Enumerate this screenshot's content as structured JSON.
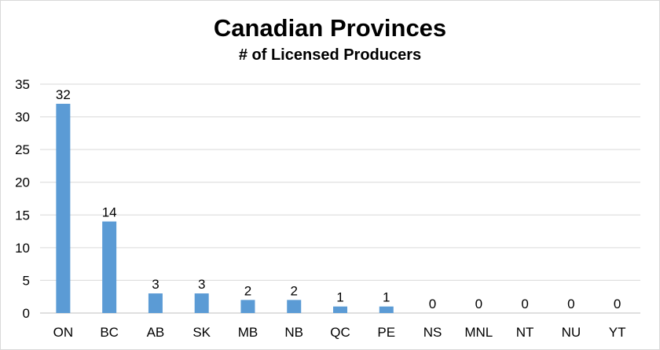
{
  "chart_data": {
    "type": "bar",
    "title": "Canadian Provinces",
    "subtitle": "# of Licensed Producers",
    "xlabel": "",
    "ylabel": "",
    "categories": [
      "ON",
      "BC",
      "AB",
      "SK",
      "MB",
      "NB",
      "QC",
      "PE",
      "NS",
      "MNL",
      "NT",
      "NU",
      "YT"
    ],
    "values": [
      32,
      14,
      3,
      3,
      2,
      2,
      1,
      1,
      0,
      0,
      0,
      0,
      0
    ],
    "ylim": [
      0,
      35
    ],
    "yticks": [
      0,
      5,
      10,
      15,
      20,
      25,
      30,
      35
    ],
    "grid": true,
    "data_labels": true,
    "bar_color": "#5b9bd5",
    "grid_color": "#d9d9d9"
  }
}
